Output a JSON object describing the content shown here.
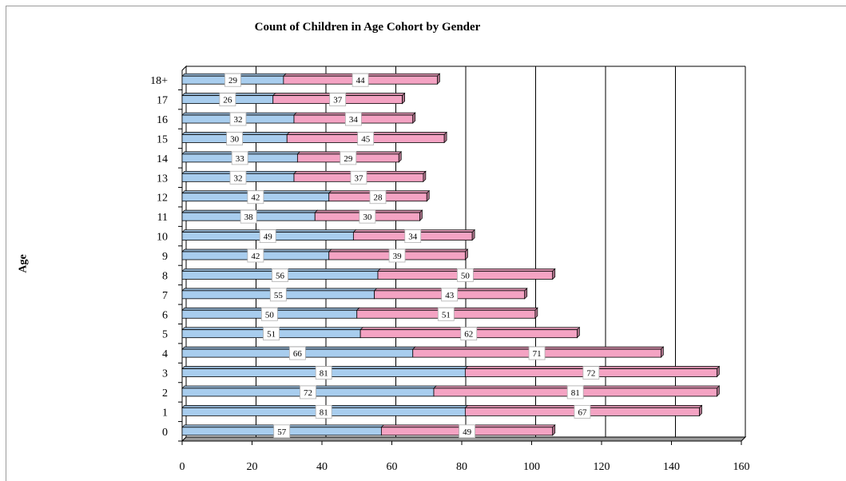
{
  "chart_data": {
    "type": "bar",
    "orientation": "horizontal",
    "stacked": true,
    "title": "Count of Children in Age Cohort by Gender",
    "xlabel": "",
    "ylabel": "Age",
    "xlim": [
      0,
      160
    ],
    "xticks": [
      0,
      20,
      40,
      60,
      80,
      100,
      120,
      140,
      160
    ],
    "grid": "vertical major lines",
    "legend": "none",
    "categories": [
      "0",
      "1",
      "2",
      "3",
      "4",
      "5",
      "6",
      "7",
      "8",
      "9",
      "10",
      "11",
      "12",
      "13",
      "14",
      "15",
      "16",
      "17",
      "18+"
    ],
    "series": [
      {
        "color": "#a8cdee",
        "values": [
          57,
          81,
          72,
          81,
          66,
          51,
          50,
          55,
          56,
          42,
          49,
          38,
          42,
          32,
          33,
          30,
          32,
          26,
          29
        ]
      },
      {
        "color": "#f4a3c3",
        "values": [
          49,
          67,
          81,
          72,
          71,
          62,
          51,
          43,
          50,
          39,
          34,
          30,
          28,
          37,
          29,
          45,
          34,
          37,
          44
        ]
      }
    ]
  }
}
